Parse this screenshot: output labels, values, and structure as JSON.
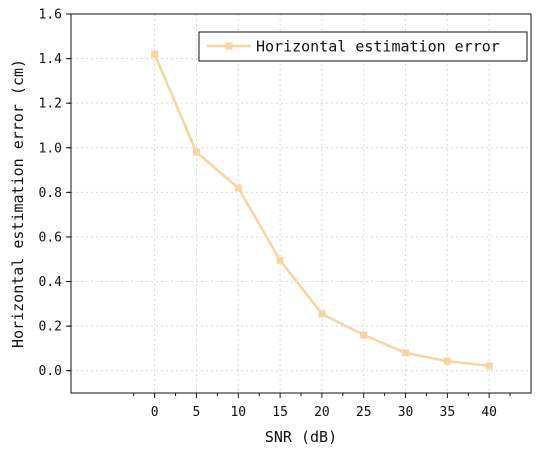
{
  "chart_data": {
    "type": "line",
    "x": [
      0,
      5,
      10,
      15,
      20,
      25,
      30,
      35,
      40
    ],
    "series": [
      {
        "name": "Horizontal estimation error",
        "values": [
          1.42,
          0.98,
          0.82,
          0.495,
          0.255,
          0.16,
          0.08,
          0.043,
          0.022
        ],
        "color": "#f8d4a0"
      }
    ],
    "xlabel": "SNR (dB)",
    "ylabel": "Horizontal estimation error (cm)",
    "xlim": [
      -10,
      45
    ],
    "ylim": [
      -0.1,
      1.6
    ],
    "xticks": [
      0,
      5,
      10,
      15,
      20,
      25,
      30,
      35,
      40
    ],
    "xtick_labels": [
      "0",
      "5",
      "10",
      "15",
      "20",
      "25",
      "30",
      "35",
      "40"
    ],
    "yticks": [
      0.0,
      0.2,
      0.4,
      0.6,
      0.8,
      1.0,
      1.2,
      1.4,
      1.6
    ],
    "ytick_labels": [
      "0.0",
      "0.2",
      "0.4",
      "0.6",
      "0.8",
      "1.0",
      "1.2",
      "1.4",
      "1.6"
    ],
    "grid": true,
    "legend_position": "top-right"
  }
}
